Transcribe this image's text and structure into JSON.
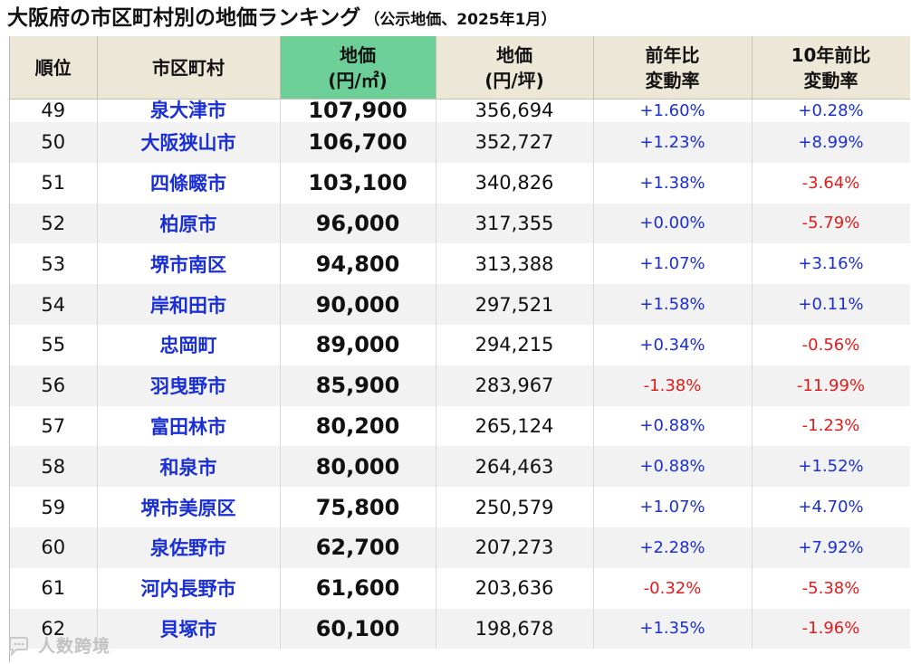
{
  "title": {
    "main": "大阪府の市区町村別の地価ランキング",
    "sub": "（公示地価、2025年1月）"
  },
  "columns": {
    "rank": "順位",
    "city": "市区町村",
    "price_sqm_line1": "地価",
    "price_sqm_line2": "(円/㎡)",
    "price_tsubo_line1": "地価",
    "price_tsubo_line2": "(円/坪)",
    "yoy_line1": "前年比",
    "yoy_line2": "変動率",
    "tenyear_line1": "10年前比",
    "tenyear_line2": "変動率"
  },
  "colors": {
    "header_bg": "#ede7d8",
    "highlight_header_bg": "#6ccf98",
    "city_text": "#1a2fd6",
    "positive": "#1a2fd6",
    "negative": "#e21b1b"
  },
  "rows": [
    {
      "rank": "49",
      "city": "泉大津市",
      "price_sqm": "107,900",
      "price_tsubo": "356,694",
      "yoy": "+1.60%",
      "tenyear": "+0.28%"
    },
    {
      "rank": "50",
      "city": "大阪狭山市",
      "price_sqm": "106,700",
      "price_tsubo": "352,727",
      "yoy": "+1.23%",
      "tenyear": "+8.99%"
    },
    {
      "rank": "51",
      "city": "四條畷市",
      "price_sqm": "103,100",
      "price_tsubo": "340,826",
      "yoy": "+1.38%",
      "tenyear": "-3.64%"
    },
    {
      "rank": "52",
      "city": "柏原市",
      "price_sqm": "96,000",
      "price_tsubo": "317,355",
      "yoy": "+0.00%",
      "tenyear": "-5.79%"
    },
    {
      "rank": "53",
      "city": "堺市南区",
      "price_sqm": "94,800",
      "price_tsubo": "313,388",
      "yoy": "+1.07%",
      "tenyear": "+3.16%"
    },
    {
      "rank": "54",
      "city": "岸和田市",
      "price_sqm": "90,000",
      "price_tsubo": "297,521",
      "yoy": "+1.58%",
      "tenyear": "+0.11%"
    },
    {
      "rank": "55",
      "city": "忠岡町",
      "price_sqm": "89,000",
      "price_tsubo": "294,215",
      "yoy": "+0.34%",
      "tenyear": "-0.56%"
    },
    {
      "rank": "56",
      "city": "羽曳野市",
      "price_sqm": "85,900",
      "price_tsubo": "283,967",
      "yoy": "-1.38%",
      "tenyear": "-11.99%"
    },
    {
      "rank": "57",
      "city": "富田林市",
      "price_sqm": "80,200",
      "price_tsubo": "265,124",
      "yoy": "+0.88%",
      "tenyear": "-1.23%"
    },
    {
      "rank": "58",
      "city": "和泉市",
      "price_sqm": "80,000",
      "price_tsubo": "264,463",
      "yoy": "+0.88%",
      "tenyear": "+1.52%"
    },
    {
      "rank": "59",
      "city": "堺市美原区",
      "price_sqm": "75,800",
      "price_tsubo": "250,579",
      "yoy": "+1.07%",
      "tenyear": "+4.70%"
    },
    {
      "rank": "60",
      "city": "泉佐野市",
      "price_sqm": "62,700",
      "price_tsubo": "207,273",
      "yoy": "+2.28%",
      "tenyear": "+7.92%"
    },
    {
      "rank": "61",
      "city": "河内長野市",
      "price_sqm": "61,600",
      "price_tsubo": "203,636",
      "yoy": "-0.32%",
      "tenyear": "-5.38%"
    },
    {
      "rank": "62",
      "city": "貝塚市",
      "price_sqm": "60,100",
      "price_tsubo": "198,678",
      "yoy": "+1.35%",
      "tenyear": "-1.96%"
    }
  ],
  "watermark": {
    "icon": "chat-bubble-icon",
    "text": "人数跨境"
  }
}
